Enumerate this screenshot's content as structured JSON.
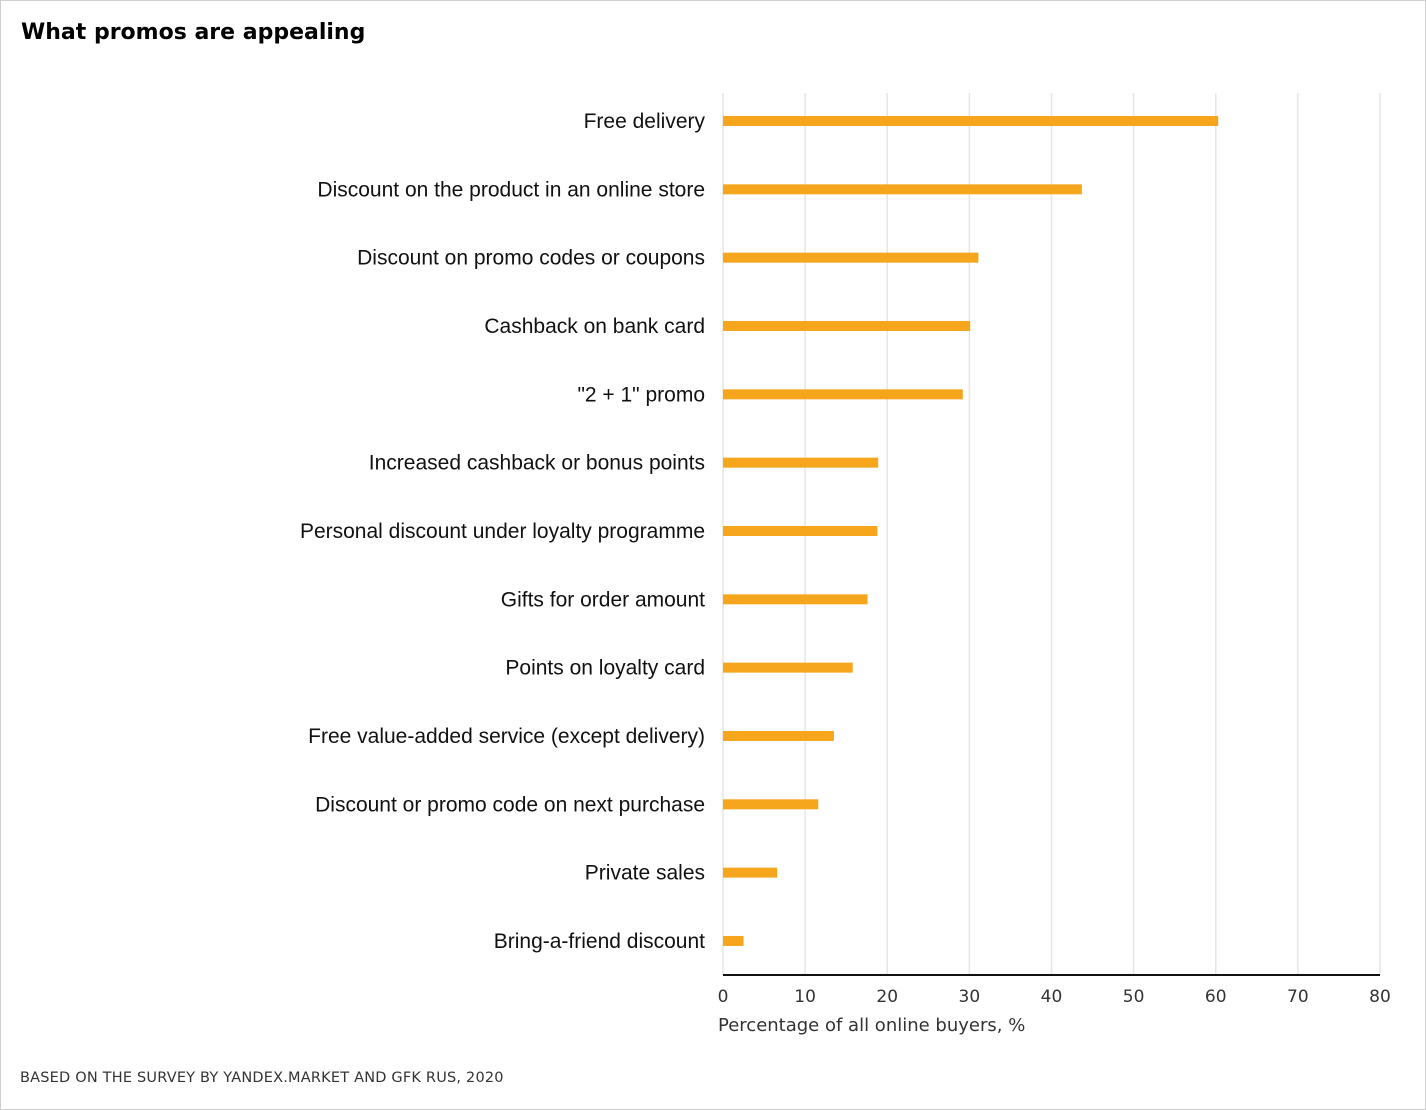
{
  "chart_data": {
    "type": "bar",
    "orientation": "horizontal",
    "title": "What promos are appealing",
    "xlabel": "Percentage of all online buyers, %",
    "ylabel": "",
    "xlim": [
      0,
      80
    ],
    "xticks": [
      0,
      10,
      20,
      30,
      40,
      50,
      60,
      70,
      80
    ],
    "grid": true,
    "bar_color": "#F5A61D",
    "categories": [
      "Free delivery",
      "Discount on the product in an online store",
      "Discount on promo codes or coupons",
      "Cashback on bank card",
      "\"2 + 1\" promo",
      "Increased cashback or bonus points",
      "Personal discount under loyalty programme",
      "Gifts for order amount",
      "Points on loyalty card",
      "Free value-added service (except delivery)",
      "Discount or promo code on next purchase",
      "Private sales",
      "Bring-a-friend discount"
    ],
    "values": [
      60.3,
      43.7,
      31.1,
      30.1,
      29.2,
      18.9,
      18.8,
      17.6,
      15.8,
      13.5,
      11.6,
      6.6,
      2.5
    ],
    "source": "BASED ON THE SURVEY BY YANDEX.MARKET AND GFK RUS, 2020"
  }
}
